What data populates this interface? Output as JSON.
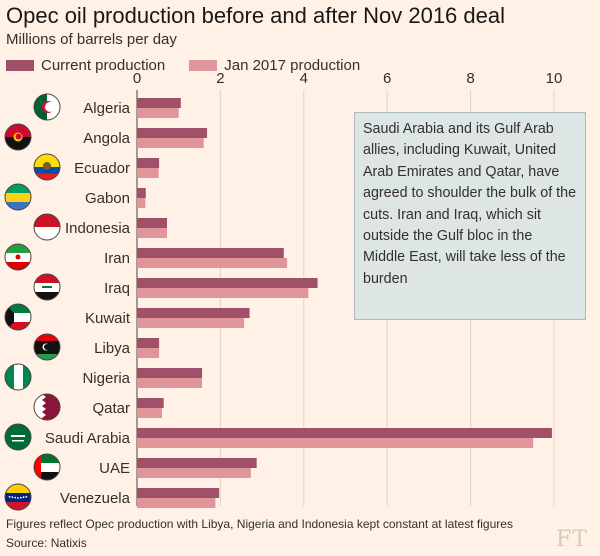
{
  "header": {
    "title": "Opec oil production before and after Nov 2016 deal",
    "subtitle": "Millions of barrels per day"
  },
  "legend": [
    {
      "label": "Current production",
      "color": "#a05069"
    },
    {
      "label": "Jan 2017 production",
      "color": "#e0959a"
    }
  ],
  "annotation": {
    "text": "Saudi Arabia and its Gulf Arab allies, including Kuwait, United Arab Emirates and Qatar, have agreed to shoulder the bulk of the cuts. Iran and Iraq, which sit outside the Gulf bloc in the Middle East, will take less of the burden"
  },
  "footer": {
    "note": "Figures reflect Opec production with Libya, Nigeria and Indonesia kept constant at latest figures",
    "source": "Source: Natixis",
    "logo": "FT"
  },
  "chart_data": {
    "type": "bar",
    "orientation": "horizontal",
    "categories": [
      "Algeria",
      "Angola",
      "Ecuador",
      "Gabon",
      "Indonesia",
      "Iran",
      "Iraq",
      "Kuwait",
      "Libya",
      "Nigeria",
      "Qatar",
      "Saudi Arabia",
      "UAE",
      "Venezuela"
    ],
    "series": [
      {
        "name": "Current production",
        "values": [
          1.05,
          1.68,
          0.53,
          0.21,
          0.72,
          3.52,
          4.33,
          2.7,
          0.53,
          1.56,
          0.64,
          9.95,
          2.87,
          1.97
        ]
      },
      {
        "name": "Jan 2017 production",
        "values": [
          1.0,
          1.6,
          0.52,
          0.2,
          0.72,
          3.6,
          4.11,
          2.57,
          0.53,
          1.56,
          0.6,
          9.5,
          2.73,
          1.88
        ]
      }
    ],
    "xlim": [
      0,
      10.5
    ],
    "xticks": [
      0,
      2,
      4,
      6,
      8,
      10
    ],
    "xtick_labels": [
      "0",
      "2",
      "4",
      "6",
      "8",
      "10"
    ],
    "grid": "vertical",
    "legend_position": "top-left",
    "flags": [
      "algeria-flag-icon",
      "angola-flag-icon",
      "ecuador-flag-icon",
      "gabon-flag-icon",
      "indonesia-flag-icon",
      "iran-flag-icon",
      "iraq-flag-icon",
      "kuwait-flag-icon",
      "libya-flag-icon",
      "nigeria-flag-icon",
      "qatar-flag-icon",
      "saudi-arabia-flag-icon",
      "uae-flag-icon",
      "venezuela-flag-icon"
    ]
  }
}
